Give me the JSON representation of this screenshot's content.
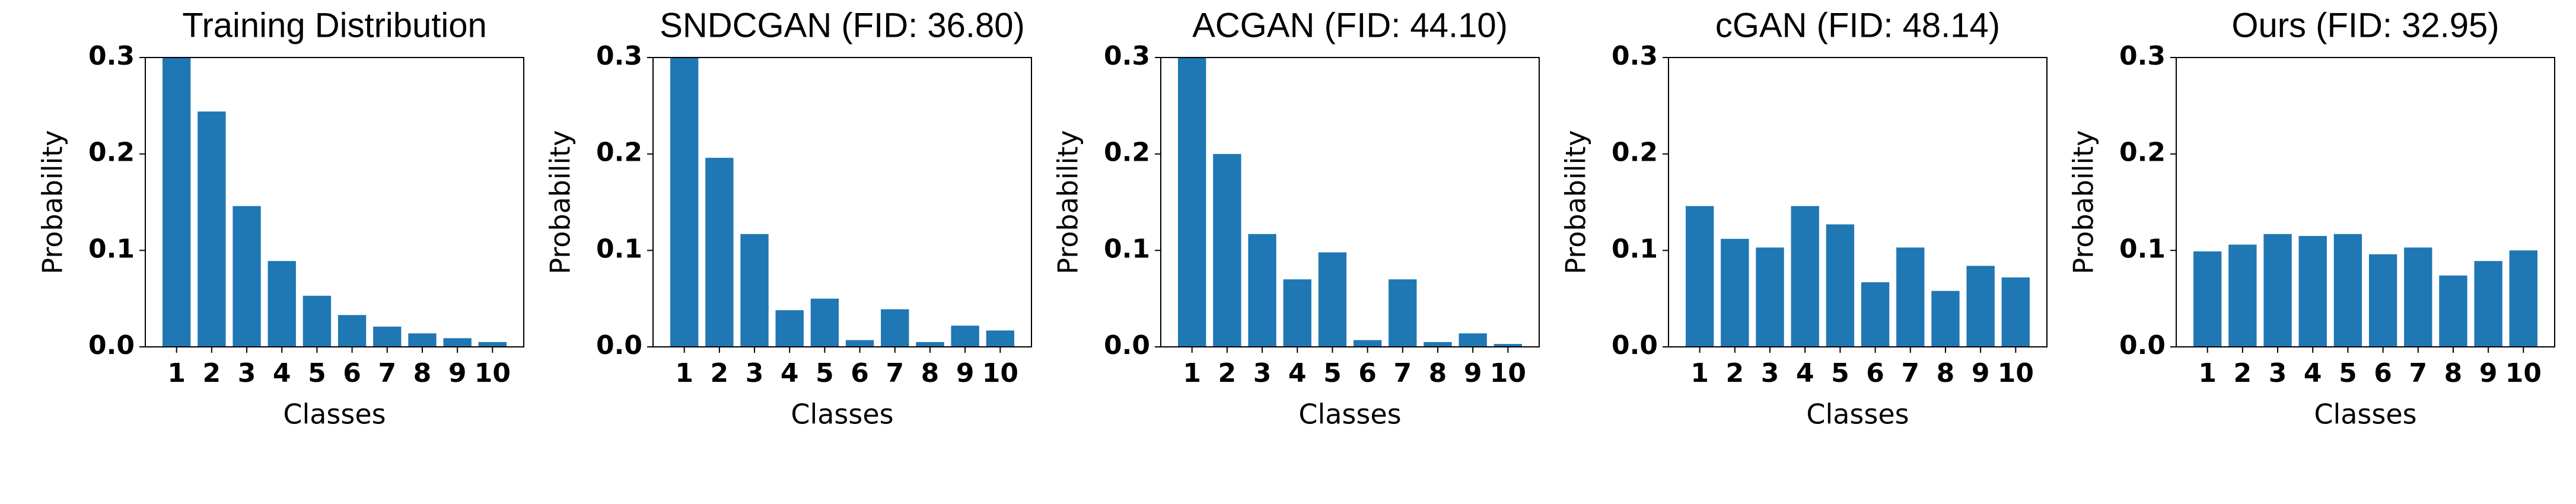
{
  "chart_data": [
    {
      "type": "bar",
      "title": "Training Distribution",
      "x_label": "Classes",
      "y_label": "Probability",
      "categories": [
        "1",
        "2",
        "3",
        "4",
        "5",
        "6",
        "7",
        "8",
        "9",
        "10"
      ],
      "values": [
        0.3,
        0.244,
        0.146,
        0.089,
        0.053,
        0.033,
        0.021,
        0.014,
        0.009,
        0.005
      ],
      "color": "#1f77b4",
      "ylim": [
        0,
        0.3
      ],
      "yticks": [
        {
          "value": 0,
          "label": "0.0"
        },
        0.1,
        0.2,
        0.3
      ]
    },
    {
      "type": "bar",
      "title": "SNDCGAN (FID: 36.80)",
      "x_label": "Classes",
      "y_label": "Probability",
      "categories": [
        "1",
        "2",
        "3",
        "4",
        "5",
        "6",
        "7",
        "8",
        "9",
        "10"
      ],
      "values": [
        0.3,
        0.196,
        0.117,
        0.038,
        0.05,
        0.007,
        0.039,
        0.005,
        0.022,
        0.017
      ],
      "color": "#1f77b4",
      "ylim": [
        0,
        0.3
      ],
      "yticks": [
        {
          "value": 0,
          "label": "0.0"
        },
        0.1,
        0.2,
        0.3
      ]
    },
    {
      "type": "bar",
      "title": "ACGAN (FID: 44.10)",
      "x_label": "Classes",
      "y_label": "Probability",
      "categories": [
        "1",
        "2",
        "3",
        "4",
        "5",
        "6",
        "7",
        "8",
        "9",
        "10"
      ],
      "values": [
        0.3,
        0.2,
        0.117,
        0.07,
        0.098,
        0.007,
        0.07,
        0.005,
        0.014,
        0.003
      ],
      "color": "#1f77b4",
      "ylim": [
        0,
        0.3
      ],
      "yticks": [
        {
          "value": 0,
          "label": "0.0"
        },
        0.1,
        0.2,
        0.3
      ]
    },
    {
      "type": "bar",
      "title": "cGAN (FID: 48.14)",
      "x_label": "Classes",
      "y_label": "Probability",
      "categories": [
        "1",
        "2",
        "3",
        "4",
        "5",
        "6",
        "7",
        "8",
        "9",
        "10"
      ],
      "values": [
        0.146,
        0.112,
        0.103,
        0.146,
        0.127,
        0.067,
        0.103,
        0.058,
        0.084,
        0.072
      ],
      "color": "#1f77b4",
      "ylim": [
        0,
        0.3
      ],
      "yticks": [
        {
          "value": 0,
          "label": "0.0"
        },
        0.1,
        0.2,
        0.3
      ]
    },
    {
      "type": "bar",
      "title": "Ours (FID: 32.95)",
      "x_label": "Classes",
      "y_label": "Probability",
      "categories": [
        "1",
        "2",
        "3",
        "4",
        "5",
        "6",
        "7",
        "8",
        "9",
        "10"
      ],
      "values": [
        0.099,
        0.106,
        0.117,
        0.115,
        0.117,
        0.096,
        0.103,
        0.074,
        0.089,
        0.1
      ],
      "color": "#1f77b4",
      "ylim": [
        0,
        0.3
      ],
      "yticks": [
        {
          "value": 0,
          "label": "0.0"
        },
        0.1,
        0.2,
        0.3
      ]
    }
  ]
}
